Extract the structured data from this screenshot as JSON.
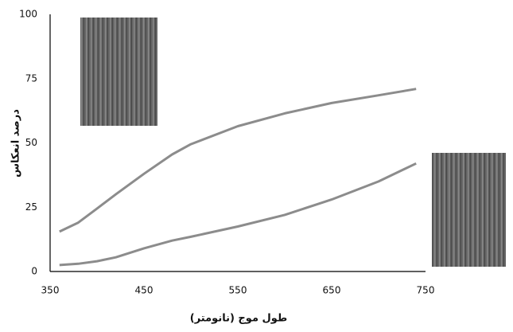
{
  "chart_data": {
    "type": "line",
    "x": [
      360,
      380,
      400,
      420,
      450,
      480,
      500,
      550,
      600,
      650,
      700,
      740
    ],
    "series": [
      {
        "color": "#8c8c8c",
        "values": [
          15.5,
          19,
          24.5,
          30,
          38,
          45.5,
          49.5,
          56.5,
          61.5,
          65.5,
          68.5,
          71
        ]
      },
      {
        "color": "#8c8c8c",
        "values": [
          2.5,
          3,
          4,
          5.5,
          9,
          12,
          13.5,
          17.5,
          22,
          28,
          35,
          42
        ]
      }
    ],
    "xlim": [
      350,
      750
    ],
    "xticks": [
      350,
      450,
      550,
      650,
      750
    ],
    "ylim": [
      0,
      100
    ],
    "yticks": [
      0,
      25,
      50,
      75,
      100
    ],
    "xlabel": "طول موج (نانومتر)",
    "ylabel": "درصد انعکاس",
    "grid": false
  }
}
